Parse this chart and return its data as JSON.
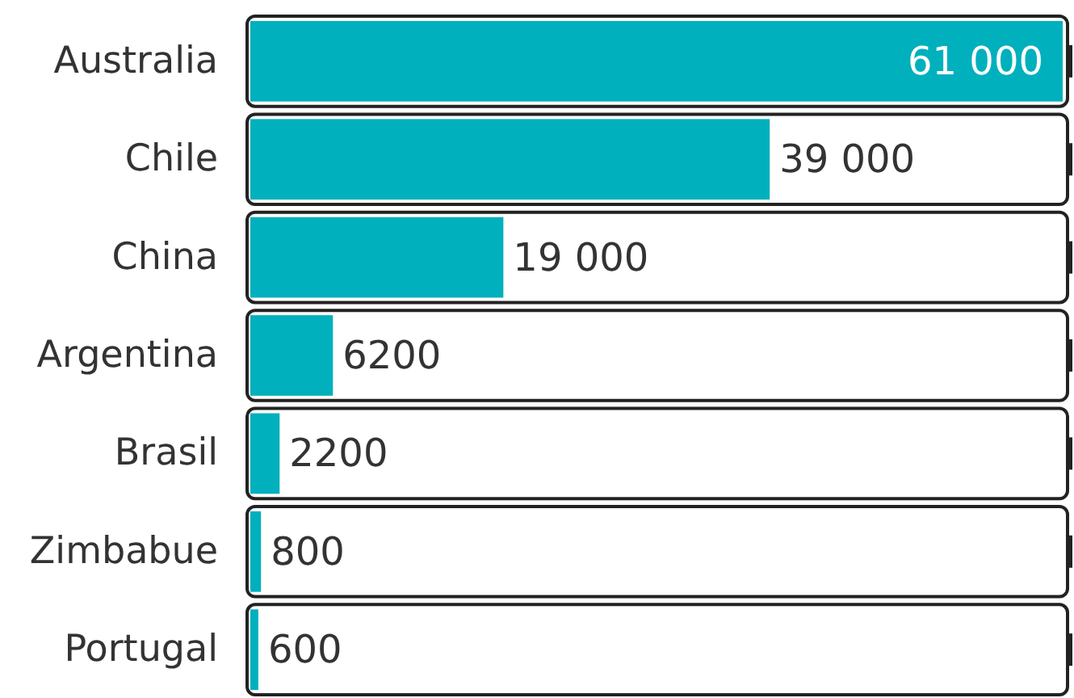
{
  "chart_data": {
    "type": "bar",
    "orientation": "horizontal",
    "categories": [
      "Australia",
      "Chile",
      "China",
      "Argentina",
      "Brasil",
      "Zimbabue",
      "Portugal"
    ],
    "values": [
      61000,
      39000,
      19000,
      6200,
      2200,
      800,
      600
    ],
    "value_labels": [
      "61 000",
      "39 000",
      "19 000",
      "6200",
      "2200",
      "800",
      "600"
    ],
    "color": "#00b0bd",
    "xlim": [
      0,
      61000
    ]
  }
}
